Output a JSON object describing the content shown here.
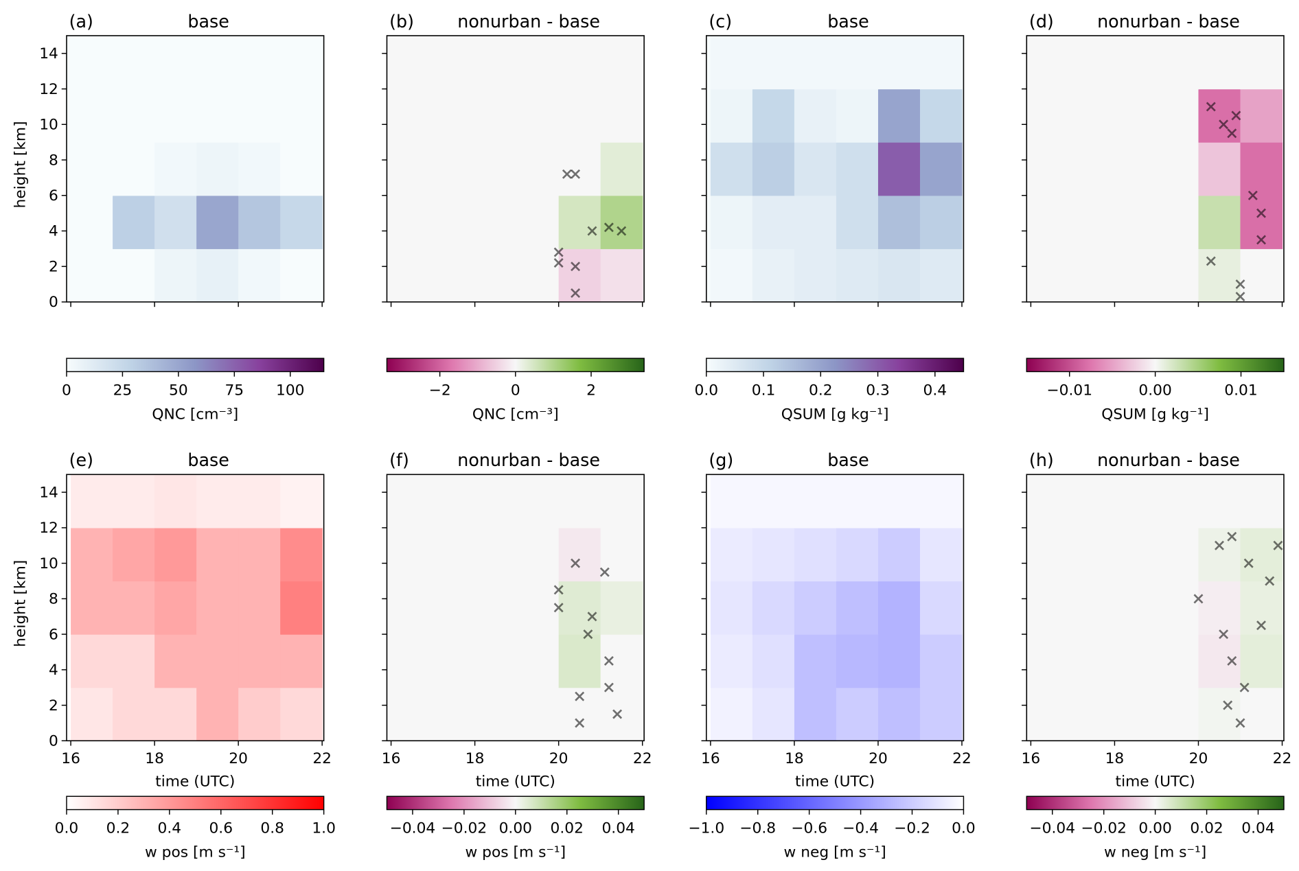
{
  "chart_data": [
    {
      "type": "heatmap",
      "panel": "(a)",
      "title": "base",
      "colorbar_label": "QNC [cm⁻³]",
      "ylabel": "height [km]",
      "colormap": [
        "#f7fcfd",
        "#bfd3e6",
        "#8c96c6",
        "#88419d",
        "#4d004b"
      ],
      "zlim": [
        0,
        115
      ],
      "zticks": [
        0,
        25,
        50,
        75,
        100
      ],
      "xlim": [
        15.9,
        22.04
      ],
      "ylim": [
        0,
        15
      ],
      "xticks": [
        16,
        18,
        20,
        22
      ],
      "yticks": [
        0,
        2,
        4,
        6,
        8,
        10,
        12,
        14
      ],
      "show_xtick_labels": false,
      "show_ytick_labels": true,
      "x": [
        16.5,
        17.5,
        18.5,
        19.5,
        20.5,
        21.5
      ],
      "y": [
        1.5,
        4.5,
        7.5,
        10.5,
        13.5
      ],
      "z": [
        [
          0,
          0,
          5,
          8,
          3,
          0
        ],
        [
          0,
          30,
          20,
          50,
          35,
          25
        ],
        [
          0,
          0,
          3,
          5,
          3,
          0
        ],
        [
          0,
          0,
          0,
          0,
          0,
          0
        ],
        [
          0,
          0,
          0,
          0,
          0,
          0
        ]
      ]
    },
    {
      "type": "heatmap",
      "panel": "(b)",
      "title": "nonurban - base",
      "colorbar_label": "QNC [cm⁻³]",
      "colormap": [
        "#8e0152",
        "#de77ae",
        "#f7f7f7",
        "#7fbc41",
        "#276419"
      ],
      "zlim": [
        -3.4,
        3.4
      ],
      "zticks": [
        {
          "value": -2,
          "label": "−2"
        },
        0,
        2
      ],
      "xlim": [
        15.9,
        22.04
      ],
      "ylim": [
        0,
        15
      ],
      "xticks": [
        16,
        18,
        20,
        22
      ],
      "yticks": [
        0,
        2,
        4,
        6,
        8,
        10,
        12,
        14
      ],
      "show_xtick_labels": false,
      "show_ytick_labels": false,
      "x": [
        16.5,
        17.5,
        18.5,
        19.5,
        20.5,
        21.5
      ],
      "y": [
        1.5,
        4.5,
        7.5,
        10.5,
        13.5
      ],
      "z": [
        [
          0,
          0,
          0,
          0,
          -0.5,
          -0.3
        ],
        [
          0,
          0,
          0,
          0,
          0.5,
          1.0
        ],
        [
          0,
          0,
          0,
          0,
          0,
          0.3
        ],
        [
          0,
          0,
          0,
          0,
          0,
          0
        ],
        [
          0,
          0,
          0,
          0,
          0,
          0
        ]
      ],
      "marker_color": "#000000",
      "markers": {
        "x": [
          20.2,
          20.4,
          20.8,
          21.2,
          21.5,
          20.0,
          20.0,
          20.4,
          20.4
        ],
        "y": [
          7.2,
          7.2,
          4.0,
          4.2,
          4.0,
          2.8,
          2.2,
          2.0,
          0.5
        ]
      }
    },
    {
      "type": "heatmap",
      "panel": "(c)",
      "title": "base",
      "colorbar_label": "QSUM [g kg⁻¹]",
      "colormap": [
        "#f7fcfd",
        "#bfd3e6",
        "#8c96c6",
        "#88419d",
        "#4d004b"
      ],
      "zlim": [
        0,
        0.45
      ],
      "zticks": [
        {
          "value": 0,
          "label": "0.0"
        },
        0.1,
        0.2,
        0.3,
        0.4
      ],
      "xlim": [
        15.9,
        22.04
      ],
      "ylim": [
        0,
        15
      ],
      "xticks": [
        16,
        18,
        20,
        22
      ],
      "yticks": [
        0,
        2,
        4,
        6,
        8,
        10,
        12,
        14
      ],
      "show_xtick_labels": false,
      "show_ytick_labels": false,
      "x": [
        16.5,
        17.5,
        18.5,
        19.5,
        20.5,
        21.5
      ],
      "y": [
        1.5,
        4.5,
        7.5,
        10.5,
        13.5
      ],
      "z": [
        [
          0.01,
          0.03,
          0.04,
          0.05,
          0.06,
          0.05
        ],
        [
          0.02,
          0.04,
          0.04,
          0.08,
          0.15,
          0.12
        ],
        [
          0.08,
          0.12,
          0.06,
          0.08,
          0.3,
          0.2
        ],
        [
          0.02,
          0.1,
          0.03,
          0.02,
          0.2,
          0.1
        ],
        [
          0.01,
          0.01,
          0.01,
          0.01,
          0.01,
          0.01
        ]
      ]
    },
    {
      "type": "heatmap",
      "panel": "(d)",
      "title": "nonurban - base",
      "colorbar_label": "QSUM [g kg⁻¹]",
      "colormap": [
        "#8e0152",
        "#de77ae",
        "#f7f7f7",
        "#7fbc41",
        "#276419"
      ],
      "zlim": [
        -0.015,
        0.015
      ],
      "zticks": [
        {
          "value": -0.01,
          "label": "−0.01"
        },
        {
          "value": 0,
          "label": "0.00"
        },
        0.01
      ],
      "xlim": [
        15.9,
        22.04
      ],
      "ylim": [
        0,
        15
      ],
      "xticks": [
        16,
        18,
        20,
        22
      ],
      "yticks": [
        0,
        2,
        4,
        6,
        8,
        10,
        12,
        14
      ],
      "show_xtick_labels": false,
      "show_ytick_labels": false,
      "x": [
        16.5,
        17.5,
        18.5,
        19.5,
        20.5,
        21.5
      ],
      "y": [
        1.5,
        4.5,
        7.5,
        10.5,
        13.5
      ],
      "z": [
        [
          0,
          0,
          0,
          0,
          0.001,
          0
        ],
        [
          0,
          0,
          0,
          0,
          0.003,
          -0.008
        ],
        [
          0,
          0,
          0,
          0,
          -0.003,
          -0.008
        ],
        [
          0,
          0,
          0,
          0,
          -0.008,
          -0.005
        ],
        [
          0,
          0,
          0,
          0,
          0,
          0
        ]
      ],
      "marker_color": "#000000",
      "markers": {
        "x": [
          20.3,
          20.6,
          20.8,
          20.9,
          21.3,
          21.5,
          21.5,
          21.0,
          21.0,
          20.3
        ],
        "y": [
          11.0,
          10.0,
          9.5,
          10.5,
          6.0,
          5.0,
          3.5,
          1.0,
          0.3,
          2.3
        ]
      }
    },
    {
      "type": "heatmap",
      "panel": "(e)",
      "title": "base",
      "colorbar_label": "w pos [m s⁻¹]",
      "ylabel": "height [km]",
      "xlabel": "time (UTC)",
      "colormap": [
        "#ffffff",
        "#ff0000"
      ],
      "zlim": [
        0,
        1
      ],
      "zticks": [
        {
          "value": 0,
          "label": "0.0"
        },
        0.2,
        0.4,
        0.6,
        0.8,
        {
          "value": 1,
          "label": "1.0"
        }
      ],
      "xlim": [
        15.9,
        22.04
      ],
      "ylim": [
        0,
        15
      ],
      "xticks": [
        16,
        18,
        20,
        22
      ],
      "yticks": [
        0,
        2,
        4,
        6,
        8,
        10,
        12,
        14
      ],
      "show_xtick_labels": true,
      "show_ytick_labels": true,
      "x": [
        16.5,
        17.5,
        18.5,
        19.5,
        20.5,
        21.5
      ],
      "y": [
        1.5,
        4.5,
        7.5,
        10.5,
        13.5
      ],
      "z": [
        [
          0.1,
          0.15,
          0.15,
          0.3,
          0.2,
          0.15
        ],
        [
          0.15,
          0.15,
          0.3,
          0.3,
          0.3,
          0.3
        ],
        [
          0.3,
          0.3,
          0.35,
          0.3,
          0.3,
          0.5
        ],
        [
          0.3,
          0.35,
          0.4,
          0.3,
          0.3,
          0.45
        ],
        [
          0.08,
          0.08,
          0.1,
          0.08,
          0.08,
          0.05
        ]
      ]
    },
    {
      "type": "heatmap",
      "panel": "(f)",
      "title": "nonurban - base",
      "colorbar_label": "w pos [m s⁻¹]",
      "xlabel": "time (UTC)",
      "colormap": [
        "#8e0152",
        "#de77ae",
        "#f7f7f7",
        "#7fbc41",
        "#276419"
      ],
      "zlim": [
        -0.05,
        0.05
      ],
      "zticks": [
        {
          "value": -0.04,
          "label": "−0.04"
        },
        {
          "value": -0.02,
          "label": "−0.02"
        },
        {
          "value": 0,
          "label": "0.00"
        },
        0.02,
        0.04
      ],
      "xlim": [
        15.9,
        22.04
      ],
      "ylim": [
        0,
        15
      ],
      "xticks": [
        16,
        18,
        20,
        22
      ],
      "yticks": [
        0,
        2,
        4,
        6,
        8,
        10,
        12,
        14
      ],
      "show_xtick_labels": true,
      "show_ytick_labels": false,
      "x": [
        16.5,
        17.5,
        18.5,
        19.5,
        20.5,
        21.5
      ],
      "y": [
        1.5,
        4.5,
        7.5,
        10.5,
        13.5
      ],
      "z": [
        [
          0,
          0,
          0,
          0,
          0,
          0
        ],
        [
          0,
          0,
          0,
          0,
          0.006,
          0
        ],
        [
          0,
          0,
          0,
          0,
          0.005,
          0.003
        ],
        [
          0,
          0,
          0,
          0,
          -0.003,
          0
        ],
        [
          0,
          0,
          0,
          0,
          0,
          0
        ]
      ],
      "marker_color": "#000000",
      "markers": {
        "x": [
          20.0,
          20.0,
          20.4,
          20.7,
          20.8,
          21.1,
          21.2,
          21.2,
          20.5,
          20.5,
          21.4
        ],
        "y": [
          8.5,
          7.5,
          10.0,
          6.0,
          7.0,
          9.5,
          4.5,
          3.0,
          2.5,
          1.0,
          1.5
        ]
      }
    },
    {
      "type": "heatmap",
      "panel": "(g)",
      "title": "base",
      "colorbar_label": "w neg [m s⁻¹]",
      "xlabel": "time (UTC)",
      "colormap": [
        "#0000ff",
        "#ffffff"
      ],
      "zlim": [
        -1,
        0
      ],
      "zticks": [
        {
          "value": -1,
          "label": "−1.0"
        },
        {
          "value": -0.8,
          "label": "−0.8"
        },
        {
          "value": -0.6,
          "label": "−0.6"
        },
        {
          "value": -0.4,
          "label": "−0.4"
        },
        {
          "value": -0.2,
          "label": "−0.2"
        },
        {
          "value": 0,
          "label": "0.0"
        }
      ],
      "xlim": [
        15.9,
        22.04
      ],
      "ylim": [
        0,
        15
      ],
      "xticks": [
        16,
        18,
        20,
        22
      ],
      "yticks": [
        0,
        2,
        4,
        6,
        8,
        10,
        12,
        14
      ],
      "show_xtick_labels": true,
      "show_ytick_labels": false,
      "x": [
        16.5,
        17.5,
        18.5,
        19.5,
        20.5,
        21.5
      ],
      "y": [
        1.5,
        4.5,
        7.5,
        10.5,
        13.5
      ],
      "z": [
        [
          -0.05,
          -0.1,
          -0.25,
          -0.2,
          -0.25,
          -0.2
        ],
        [
          -0.08,
          -0.12,
          -0.25,
          -0.28,
          -0.3,
          -0.2
        ],
        [
          -0.1,
          -0.15,
          -0.2,
          -0.25,
          -0.3,
          -0.15
        ],
        [
          -0.08,
          -0.1,
          -0.12,
          -0.15,
          -0.2,
          -0.1
        ],
        [
          -0.03,
          -0.03,
          -0.03,
          -0.03,
          -0.03,
          -0.03
        ]
      ]
    },
    {
      "type": "heatmap",
      "panel": "(h)",
      "title": "nonurban - base",
      "colorbar_label": "w neg [m s⁻¹]",
      "xlabel": "time (UTC)",
      "colormap": [
        "#8e0152",
        "#de77ae",
        "#f7f7f7",
        "#7fbc41",
        "#276419"
      ],
      "zlim": [
        -0.05,
        0.05
      ],
      "zticks": [
        {
          "value": -0.04,
          "label": "−0.04"
        },
        {
          "value": -0.02,
          "label": "−0.02"
        },
        {
          "value": 0,
          "label": "0.00"
        },
        0.02,
        0.04
      ],
      "xlim": [
        15.9,
        22.04
      ],
      "ylim": [
        0,
        15
      ],
      "xticks": [
        16,
        18,
        20,
        22
      ],
      "yticks": [
        0,
        2,
        4,
        6,
        8,
        10,
        12,
        14
      ],
      "show_xtick_labels": true,
      "show_ytick_labels": false,
      "x": [
        16.5,
        17.5,
        18.5,
        19.5,
        20.5,
        21.5
      ],
      "y": [
        1.5,
        4.5,
        7.5,
        10.5,
        13.5
      ],
      "z": [
        [
          0,
          0,
          0,
          0,
          0.001,
          0
        ],
        [
          0,
          0,
          0,
          0,
          -0.003,
          0.004
        ],
        [
          0,
          0,
          0,
          0,
          -0.002,
          0.003
        ],
        [
          0,
          0,
          0,
          0,
          0.002,
          0.004
        ],
        [
          0,
          0,
          0,
          0,
          0,
          0
        ]
      ],
      "marker_color": "#000000",
      "markers": {
        "x": [
          20.0,
          20.5,
          20.8,
          21.2,
          21.7,
          21.9,
          20.6,
          20.8,
          21.1,
          20.7,
          21.0,
          21.5
        ],
        "y": [
          8.0,
          11.0,
          11.5,
          10.0,
          9.0,
          11.0,
          6.0,
          4.5,
          3.0,
          2.0,
          1.0,
          6.5
        ]
      }
    }
  ]
}
